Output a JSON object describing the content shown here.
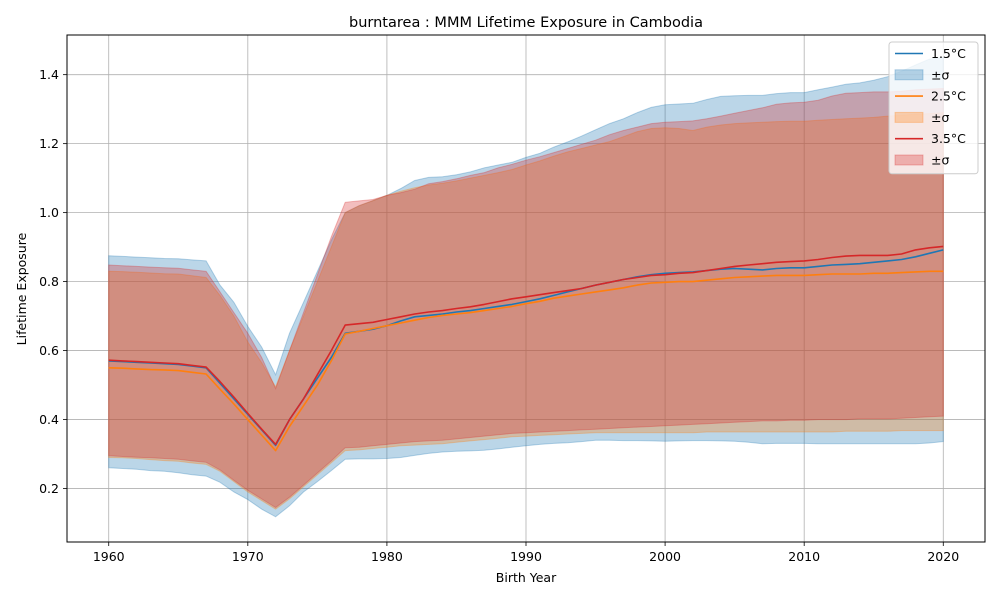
{
  "chart_data": {
    "type": "line",
    "title": "burntarea : MMM Lifetime Exposure in Cambodia",
    "xlabel": "Birth Year",
    "ylabel": "Lifetime Exposure",
    "xlim": [
      1957,
      2023
    ],
    "ylim": [
      0.045,
      1.515
    ],
    "x_ticks": [
      1960,
      1970,
      1980,
      1990,
      2000,
      2010,
      2020
    ],
    "y_ticks": [
      0.2,
      0.4,
      0.6,
      0.8,
      1.0,
      1.2,
      1.4
    ],
    "x_tick_labels": [
      "1960",
      "1970",
      "1980",
      "1990",
      "2000",
      "2010",
      "2020"
    ],
    "y_tick_labels": [
      "0.2",
      "0.4",
      "0.6",
      "0.8",
      "1.0",
      "1.2",
      "1.4"
    ],
    "grid": true,
    "legend_position": "top-right",
    "legend": [
      {
        "label": "1.5°C",
        "kind": "line",
        "series": 0
      },
      {
        "label": "±σ",
        "kind": "band",
        "series": 0
      },
      {
        "label": "2.5°C",
        "kind": "line",
        "series": 1
      },
      {
        "label": "±σ",
        "kind": "band",
        "series": 1
      },
      {
        "label": "3.5°C",
        "kind": "line",
        "series": 2
      },
      {
        "label": "±σ",
        "kind": "band",
        "series": 2
      }
    ],
    "x": [
      1960,
      1961,
      1962,
      1963,
      1964,
      1965,
      1966,
      1967,
      1968,
      1969,
      1970,
      1971,
      1972,
      1973,
      1974,
      1975,
      1976,
      1977,
      1978,
      1979,
      1980,
      1981,
      1982,
      1983,
      1984,
      1985,
      1986,
      1987,
      1988,
      1989,
      1990,
      1991,
      1992,
      1993,
      1994,
      1995,
      1996,
      1997,
      1998,
      1999,
      2000,
      2001,
      2002,
      2003,
      2004,
      2005,
      2006,
      2007,
      2008,
      2009,
      2010,
      2011,
      2012,
      2013,
      2014,
      2015,
      2016,
      2017,
      2018,
      2019,
      2020
    ],
    "series": [
      {
        "name": "1.5°C",
        "color": "#1f77b4",
        "band_color": "#1f77b4",
        "mean": [
          0.57,
          0.568,
          0.566,
          0.564,
          0.562,
          0.56,
          0.555,
          0.55,
          0.505,
          0.46,
          0.415,
          0.37,
          0.325,
          0.4,
          0.46,
          0.52,
          0.58,
          0.65,
          0.656,
          0.662,
          0.672,
          0.686,
          0.698,
          0.702,
          0.706,
          0.712,
          0.716,
          0.722,
          0.728,
          0.734,
          0.742,
          0.75,
          0.76,
          0.77,
          0.78,
          0.79,
          0.798,
          0.806,
          0.814,
          0.82,
          0.824,
          0.826,
          0.828,
          0.832,
          0.836,
          0.838,
          0.836,
          0.834,
          0.838,
          0.84,
          0.84,
          0.844,
          0.848,
          0.85,
          0.852,
          0.856,
          0.86,
          0.864,
          0.872,
          0.882,
          0.892
        ],
        "upper": [
          0.875,
          0.873,
          0.871,
          0.869,
          0.867,
          0.866,
          0.863,
          0.86,
          0.79,
          0.74,
          0.67,
          0.61,
          0.53,
          0.65,
          0.74,
          0.83,
          0.92,
          1.0,
          1.02,
          1.035,
          1.05,
          1.07,
          1.093,
          1.102,
          1.104,
          1.11,
          1.118,
          1.13,
          1.138,
          1.146,
          1.16,
          1.172,
          1.19,
          1.205,
          1.222,
          1.24,
          1.258,
          1.272,
          1.29,
          1.305,
          1.313,
          1.315,
          1.317,
          1.328,
          1.337,
          1.339,
          1.34,
          1.34,
          1.345,
          1.348,
          1.348,
          1.356,
          1.364,
          1.372,
          1.376,
          1.384,
          1.394,
          1.41,
          1.428,
          1.445,
          1.45
        ],
        "lower": [
          0.26,
          0.258,
          0.256,
          0.252,
          0.25,
          0.246,
          0.24,
          0.236,
          0.218,
          0.19,
          0.168,
          0.14,
          0.118,
          0.15,
          0.19,
          0.22,
          0.252,
          0.285,
          0.286,
          0.286,
          0.287,
          0.29,
          0.296,
          0.302,
          0.306,
          0.308,
          0.309,
          0.311,
          0.315,
          0.32,
          0.324,
          0.328,
          0.331,
          0.333,
          0.336,
          0.34,
          0.34,
          0.339,
          0.339,
          0.338,
          0.337,
          0.338,
          0.339,
          0.339,
          0.338,
          0.337,
          0.334,
          0.33,
          0.331,
          0.331,
          0.331,
          0.33,
          0.33,
          0.33,
          0.33,
          0.33,
          0.33,
          0.33,
          0.33,
          0.332,
          0.336
        ]
      },
      {
        "name": "2.5°C",
        "color": "#ff7f0e",
        "band_color": "#ff7f0e",
        "mean": [
          0.55,
          0.549,
          0.547,
          0.545,
          0.544,
          0.542,
          0.537,
          0.532,
          0.488,
          0.445,
          0.4,
          0.355,
          0.31,
          0.38,
          0.44,
          0.5,
          0.57,
          0.648,
          0.656,
          0.664,
          0.672,
          0.68,
          0.688,
          0.696,
          0.702,
          0.706,
          0.71,
          0.716,
          0.722,
          0.728,
          0.736,
          0.743,
          0.752,
          0.758,
          0.764,
          0.77,
          0.776,
          0.782,
          0.79,
          0.796,
          0.798,
          0.8,
          0.8,
          0.804,
          0.808,
          0.812,
          0.814,
          0.816,
          0.818,
          0.818,
          0.818,
          0.82,
          0.822,
          0.822,
          0.822,
          0.824,
          0.824,
          0.826,
          0.828,
          0.83,
          0.83
        ],
        "upper": [
          0.83,
          0.829,
          0.827,
          0.825,
          0.823,
          0.822,
          0.817,
          0.812,
          0.76,
          0.7,
          0.625,
          0.565,
          0.495,
          0.6,
          0.7,
          0.8,
          0.9,
          1.0,
          1.02,
          1.035,
          1.05,
          1.062,
          1.072,
          1.08,
          1.085,
          1.092,
          1.1,
          1.108,
          1.116,
          1.125,
          1.138,
          1.15,
          1.164,
          1.176,
          1.186,
          1.196,
          1.206,
          1.22,
          1.235,
          1.244,
          1.246,
          1.244,
          1.238,
          1.248,
          1.254,
          1.258,
          1.26,
          1.262,
          1.264,
          1.265,
          1.265,
          1.268,
          1.27,
          1.272,
          1.274,
          1.276,
          1.28,
          1.282,
          1.285,
          1.287,
          1.29
        ],
        "lower": [
          0.29,
          0.289,
          0.287,
          0.284,
          0.281,
          0.279,
          0.274,
          0.27,
          0.25,
          0.22,
          0.19,
          0.165,
          0.14,
          0.17,
          0.205,
          0.24,
          0.275,
          0.31,
          0.312,
          0.316,
          0.32,
          0.324,
          0.326,
          0.328,
          0.33,
          0.334,
          0.338,
          0.342,
          0.346,
          0.35,
          0.352,
          0.354,
          0.356,
          0.358,
          0.36,
          0.362,
          0.362,
          0.362,
          0.362,
          0.362,
          0.362,
          0.362,
          0.362,
          0.364,
          0.364,
          0.364,
          0.364,
          0.364,
          0.364,
          0.364,
          0.364,
          0.364,
          0.364,
          0.366,
          0.366,
          0.366,
          0.366,
          0.368,
          0.368,
          0.368,
          0.368
        ]
      },
      {
        "name": "3.5°C",
        "color": "#d62728",
        "band_color": "#d62728",
        "mean": [
          0.572,
          0.57,
          0.568,
          0.566,
          0.564,
          0.562,
          0.557,
          0.552,
          0.51,
          0.465,
          0.418,
          0.372,
          0.328,
          0.4,
          0.46,
          0.53,
          0.6,
          0.674,
          0.678,
          0.682,
          0.69,
          0.698,
          0.706,
          0.712,
          0.716,
          0.722,
          0.727,
          0.734,
          0.742,
          0.75,
          0.756,
          0.762,
          0.768,
          0.774,
          0.78,
          0.79,
          0.798,
          0.806,
          0.812,
          0.818,
          0.82,
          0.824,
          0.826,
          0.832,
          0.838,
          0.844,
          0.848,
          0.852,
          0.856,
          0.858,
          0.86,
          0.864,
          0.87,
          0.874,
          0.876,
          0.876,
          0.876,
          0.88,
          0.892,
          0.898,
          0.902
        ],
        "upper": [
          0.848,
          0.846,
          0.844,
          0.842,
          0.84,
          0.839,
          0.834,
          0.83,
          0.77,
          0.71,
          0.65,
          0.58,
          0.49,
          0.6,
          0.71,
          0.82,
          0.93,
          1.03,
          1.034,
          1.038,
          1.05,
          1.058,
          1.068,
          1.084,
          1.09,
          1.098,
          1.108,
          1.116,
          1.13,
          1.14,
          1.152,
          1.162,
          1.174,
          1.186,
          1.198,
          1.21,
          1.226,
          1.238,
          1.248,
          1.258,
          1.262,
          1.264,
          1.266,
          1.272,
          1.28,
          1.288,
          1.296,
          1.304,
          1.314,
          1.318,
          1.32,
          1.326,
          1.338,
          1.346,
          1.348,
          1.35,
          1.35,
          1.352,
          1.356,
          1.358,
          1.36
        ],
        "lower": [
          0.295,
          0.293,
          0.291,
          0.289,
          0.287,
          0.285,
          0.28,
          0.276,
          0.254,
          0.224,
          0.195,
          0.17,
          0.145,
          0.175,
          0.21,
          0.245,
          0.28,
          0.318,
          0.32,
          0.324,
          0.328,
          0.332,
          0.336,
          0.338,
          0.34,
          0.344,
          0.348,
          0.352,
          0.356,
          0.36,
          0.362,
          0.364,
          0.366,
          0.368,
          0.37,
          0.372,
          0.374,
          0.376,
          0.378,
          0.38,
          0.382,
          0.384,
          0.386,
          0.388,
          0.39,
          0.392,
          0.394,
          0.396,
          0.396,
          0.398,
          0.398,
          0.4,
          0.4,
          0.4,
          0.402,
          0.402,
          0.402,
          0.404,
          0.406,
          0.408,
          0.41
        ]
      }
    ]
  }
}
